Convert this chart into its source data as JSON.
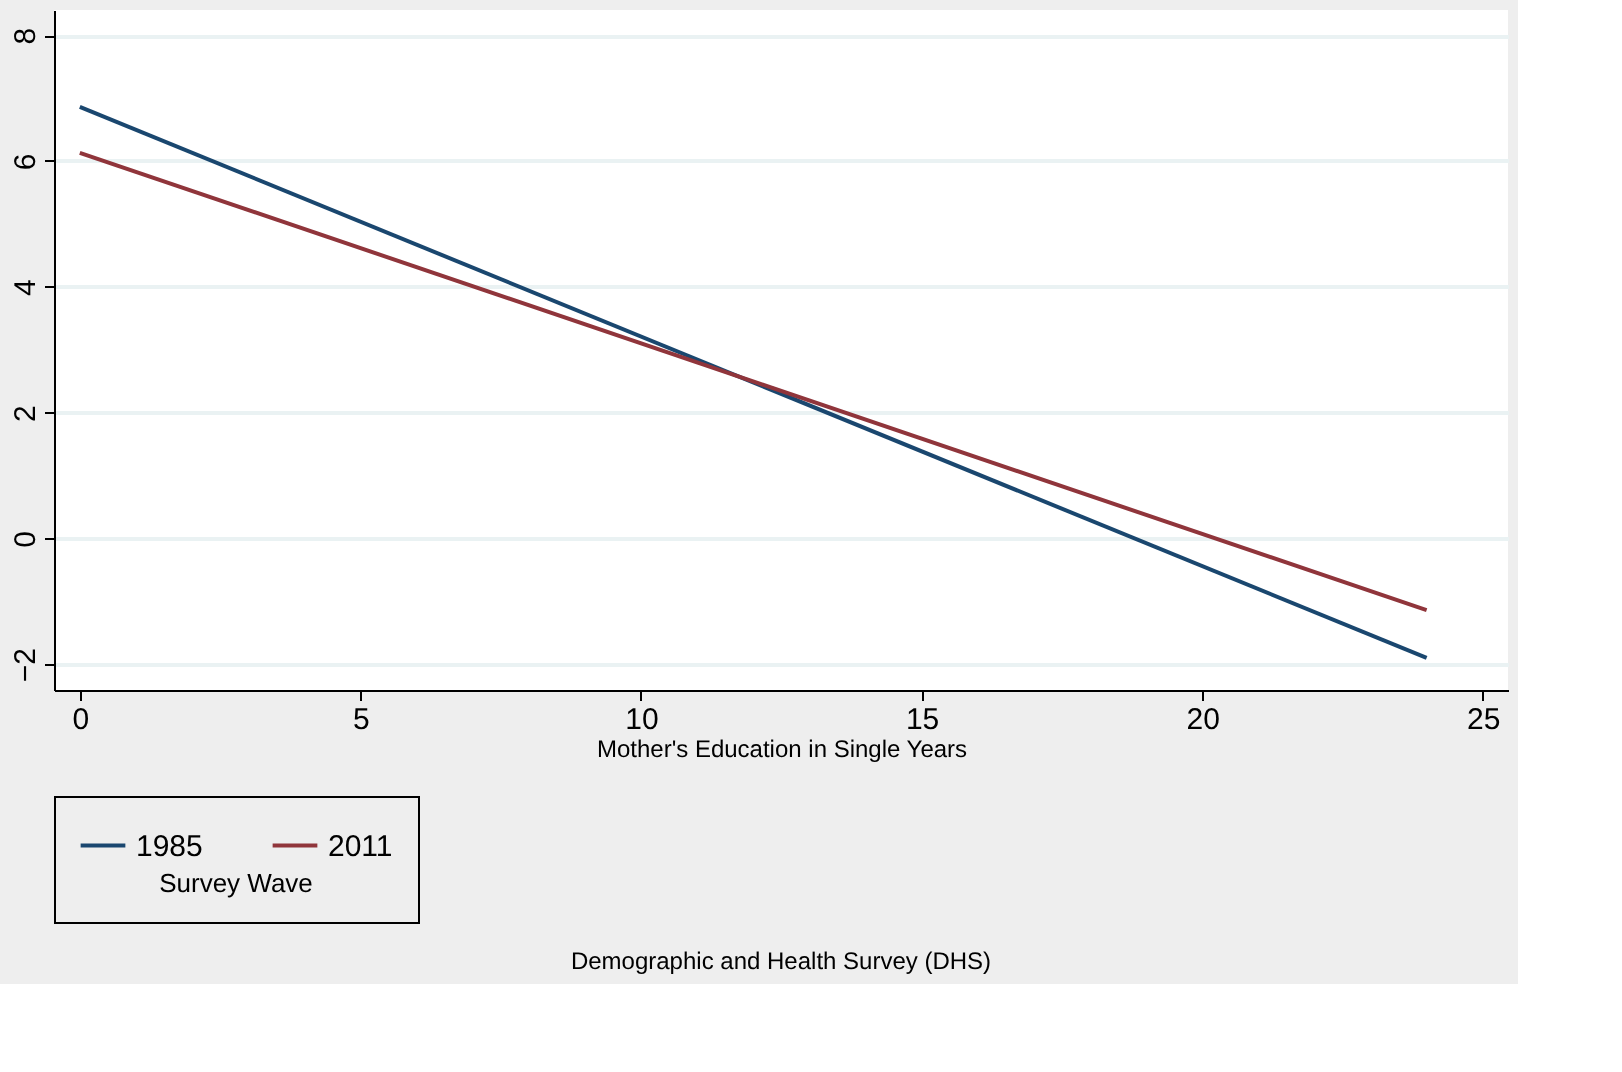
{
  "chart_data": {
    "type": "line",
    "xlabel": "Mother's Education in Single Years",
    "legend_title": "Survey Wave",
    "x": [
      0,
      24
    ],
    "series": [
      {
        "name": "1985",
        "color": "#1a476f",
        "values": [
          6.86,
          -1.9
        ]
      },
      {
        "name": "2011",
        "color": "#90353b",
        "values": [
          6.13,
          -1.14
        ]
      }
    ],
    "xlim": [
      -0.46,
      25.45
    ],
    "xticks": [
      0,
      5,
      10,
      15,
      20,
      25
    ],
    "ylim": [
      -2.41,
      8.4
    ],
    "yticks": [
      -2,
      0,
      2,
      4,
      6,
      8
    ],
    "grid": "y",
    "legend": "bottom",
    "marker": "none",
    "line_style": "solid",
    "annotations": [
      "Demographic and Health Survey (DHS)"
    ]
  }
}
